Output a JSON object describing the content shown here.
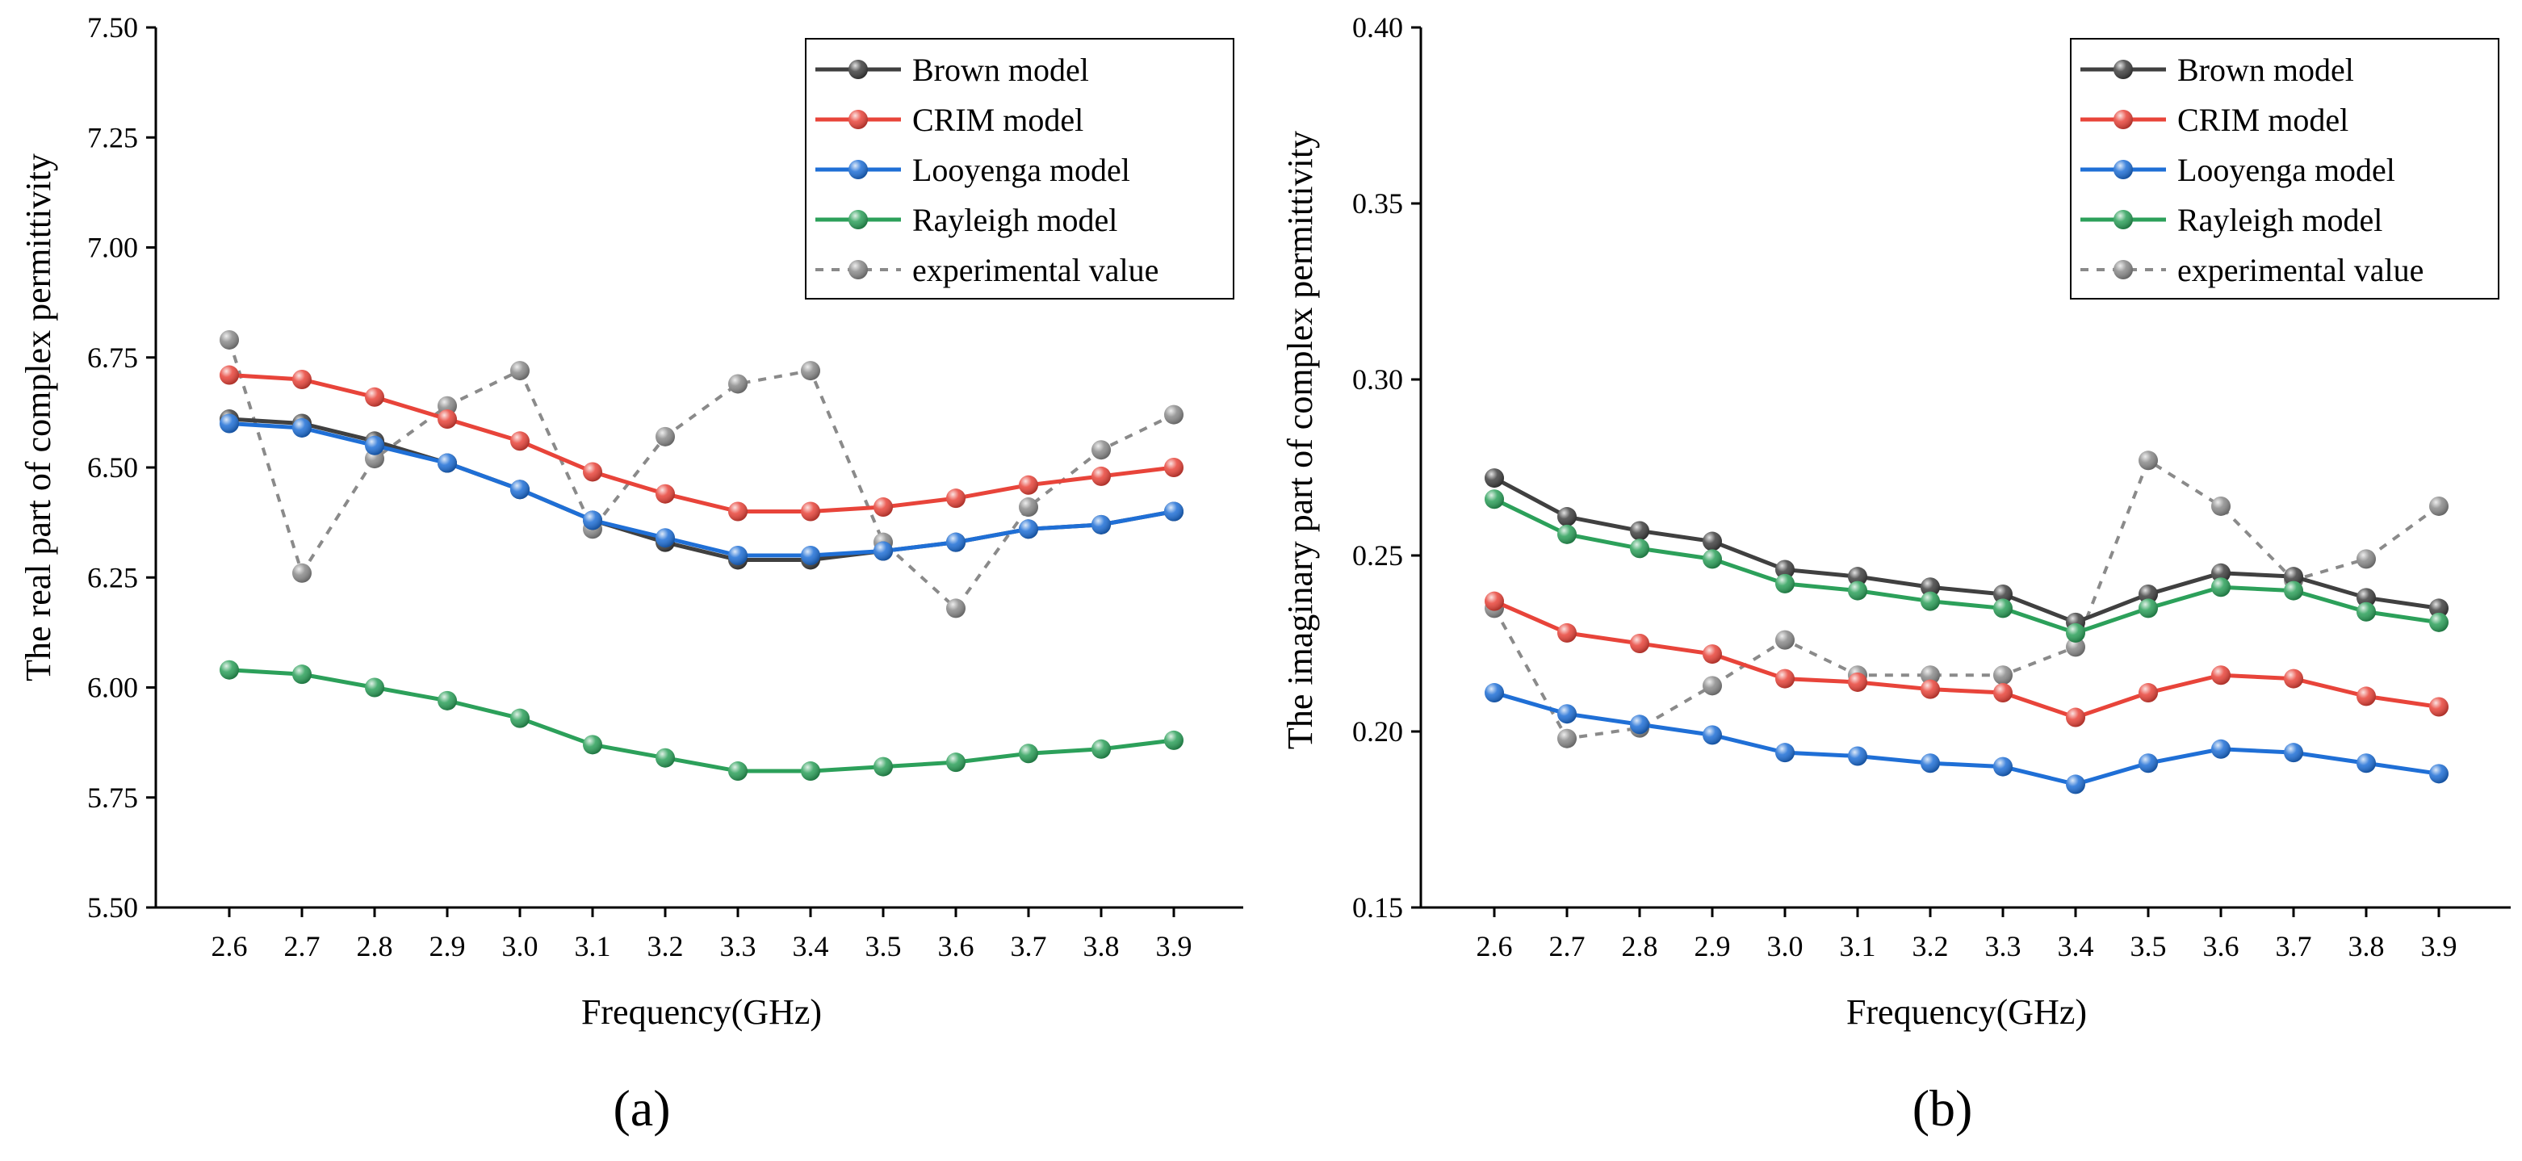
{
  "figure": {
    "panel_labels": [
      "(a)",
      "(b)"
    ]
  },
  "chart_data": [
    {
      "type": "line",
      "panel": "(a)",
      "title": "",
      "xlabel": "Frequency(GHz)",
      "ylabel": "The real part of complex permittivity",
      "categories": [
        "2.6",
        "2.7",
        "2.8",
        "2.9",
        "3.0",
        "3.1",
        "3.2",
        "3.3",
        "3.4",
        "3.5",
        "3.6",
        "3.7",
        "3.8",
        "3.9"
      ],
      "ylim": [
        5.5,
        7.5
      ],
      "yticks": [
        5.5,
        5.75,
        6.0,
        6.25,
        6.5,
        6.75,
        7.0,
        7.25,
        7.5
      ],
      "ytick_labels": [
        "5.50",
        "5.75",
        "6.00",
        "6.25",
        "6.50",
        "6.75",
        "7.00",
        "7.25",
        "7.50"
      ],
      "legend_position": "top-right",
      "series": [
        {
          "name": "Brown model",
          "color": "#404040",
          "dashed": false,
          "values": [
            6.61,
            6.6,
            6.56,
            6.51,
            6.45,
            6.38,
            6.33,
            6.29,
            6.29,
            6.31,
            6.33,
            6.36,
            6.37,
            6.4
          ]
        },
        {
          "name": "CRIM model",
          "color": "#e8443a",
          "dashed": false,
          "values": [
            6.71,
            6.7,
            6.66,
            6.61,
            6.56,
            6.49,
            6.44,
            6.4,
            6.4,
            6.41,
            6.43,
            6.46,
            6.48,
            6.5
          ]
        },
        {
          "name": "Looyenga model",
          "color": "#1f6fd6",
          "dashed": false,
          "values": [
            6.6,
            6.59,
            6.55,
            6.51,
            6.45,
            6.38,
            6.34,
            6.3,
            6.3,
            6.31,
            6.33,
            6.36,
            6.37,
            6.4
          ]
        },
        {
          "name": "Rayleigh model",
          "color": "#2ca05a",
          "dashed": false,
          "values": [
            6.04,
            6.03,
            6.0,
            5.97,
            5.93,
            5.87,
            5.84,
            5.81,
            5.81,
            5.82,
            5.83,
            5.85,
            5.86,
            5.88
          ]
        },
        {
          "name": "experimental value",
          "color": "#8a8a8a",
          "dashed": true,
          "values": [
            6.79,
            6.26,
            6.52,
            6.64,
            6.72,
            6.36,
            6.57,
            6.69,
            6.72,
            6.33,
            6.18,
            6.41,
            6.54,
            6.62
          ]
        }
      ]
    },
    {
      "type": "line",
      "panel": "(b)",
      "title": "",
      "xlabel": "Frequency(GHz)",
      "ylabel": "The imaginary part of complex permittivity",
      "categories": [
        "2.6",
        "2.7",
        "2.8",
        "2.9",
        "3.0",
        "3.1",
        "3.2",
        "3.3",
        "3.4",
        "3.5",
        "3.6",
        "3.7",
        "3.8",
        "3.9"
      ],
      "ylim": [
        0.15,
        0.4
      ],
      "yticks": [
        0.15,
        0.2,
        0.25,
        0.3,
        0.35,
        0.4
      ],
      "ytick_labels": [
        "0.15",
        "0.20",
        "0.25",
        "0.30",
        "0.35",
        "0.40"
      ],
      "legend_position": "top-right",
      "series": [
        {
          "name": "Brown model",
          "color": "#404040",
          "dashed": false,
          "values": [
            0.272,
            0.261,
            0.257,
            0.254,
            0.246,
            0.244,
            0.241,
            0.239,
            0.231,
            0.239,
            0.245,
            0.244,
            0.238,
            0.235
          ]
        },
        {
          "name": "CRIM model",
          "color": "#e8443a",
          "dashed": false,
          "values": [
            0.237,
            0.228,
            0.225,
            0.222,
            0.215,
            0.214,
            0.212,
            0.211,
            0.204,
            0.211,
            0.216,
            0.215,
            0.21,
            0.207
          ]
        },
        {
          "name": "Looyenga model",
          "color": "#1f6fd6",
          "dashed": false,
          "values": [
            0.211,
            0.205,
            0.202,
            0.199,
            0.194,
            0.193,
            0.191,
            0.19,
            0.185,
            0.191,
            0.195,
            0.194,
            0.191,
            0.188
          ]
        },
        {
          "name": "Rayleigh model",
          "color": "#2ca05a",
          "dashed": false,
          "values": [
            0.266,
            0.256,
            0.252,
            0.249,
            0.242,
            0.24,
            0.237,
            0.235,
            0.228,
            0.235,
            0.241,
            0.24,
            0.234,
            0.231
          ]
        },
        {
          "name": "experimental value",
          "color": "#8a8a8a",
          "dashed": true,
          "values": [
            0.235,
            0.198,
            0.201,
            0.213,
            0.226,
            0.216,
            0.216,
            0.216,
            0.224,
            0.277,
            0.264,
            0.243,
            0.249,
            0.264
          ]
        }
      ]
    }
  ]
}
